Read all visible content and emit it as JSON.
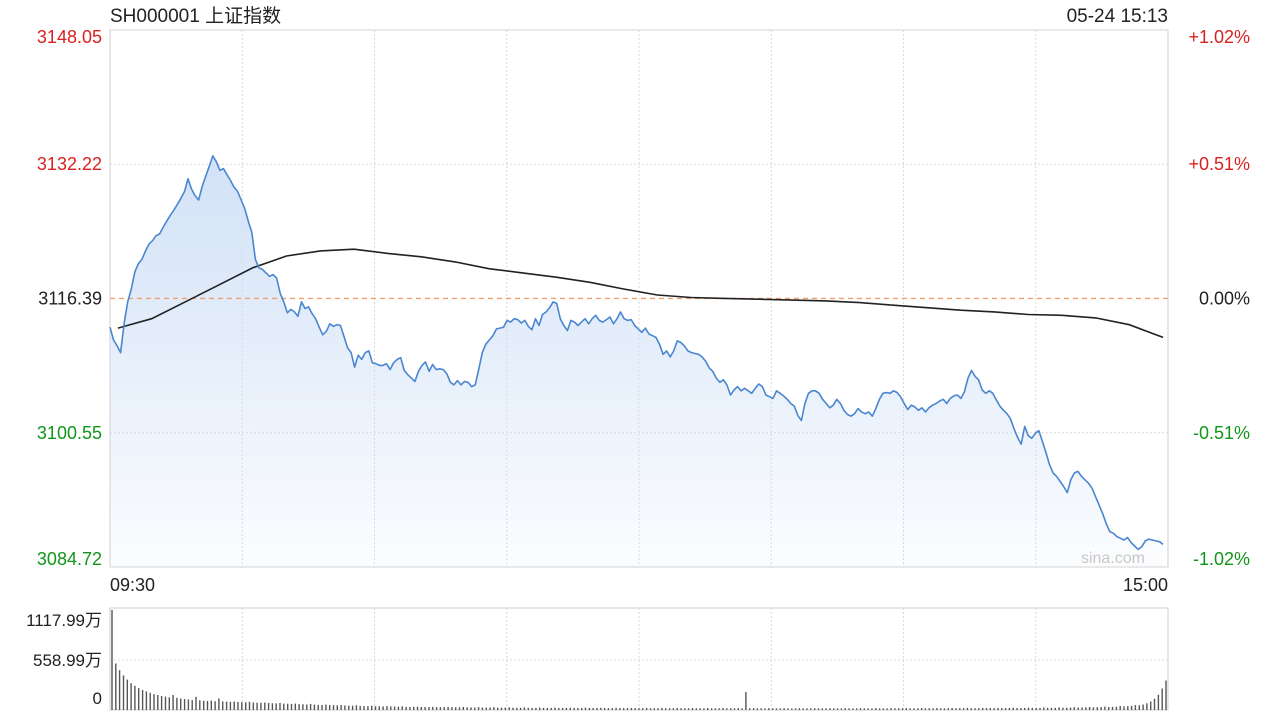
{
  "header": {
    "title": "SH000001 上证指数",
    "timestamp": "05-24 15:13"
  },
  "colors": {
    "up": "#d9211f",
    "down": "#109618",
    "line": "#4a86d0",
    "avg": "#222222",
    "area": "#cfe0f6",
    "baseline": "#f0a070",
    "grid": "#d8d8d8"
  },
  "watermark": "sina.com",
  "chart_data": [
    {
      "type": "line",
      "x_ticks": [
        "09:30",
        "15:00"
      ],
      "y_ticks": [
        {
          "value": 3148.05,
          "label": "3148.05",
          "pct": "+1.02%",
          "trend": "up"
        },
        {
          "value": 3132.22,
          "label": "3132.22",
          "pct": "+0.51%",
          "trend": "up"
        },
        {
          "value": 3116.39,
          "label": "3116.39",
          "pct": "0.00%",
          "trend": "flat"
        },
        {
          "value": 3100.55,
          "label": "3100.55",
          "pct": "-0.51%",
          "trend": "down"
        },
        {
          "value": 3084.72,
          "label": "3084.72",
          "pct": "-1.02%",
          "trend": "down"
        }
      ],
      "ylim": [
        3084.72,
        3148.05
      ],
      "baseline": 3116.39,
      "grid": true,
      "series": [
        {
          "key": "price",
          "values": [
            3113.0,
            3111.5,
            3110.8,
            3110.0,
            3113.5,
            3116.0,
            3117.5,
            3119.5,
            3120.5,
            3121.0,
            3122.0,
            3122.8,
            3123.2,
            3123.8,
            3124.0,
            3124.8,
            3125.5,
            3126.2,
            3126.8,
            3127.5,
            3128.2,
            3129.0,
            3130.5,
            3129.3,
            3128.5,
            3128.0,
            3129.6,
            3130.8,
            3132.0,
            3133.2,
            3132.5,
            3131.5,
            3131.7,
            3131.0,
            3130.3,
            3129.5,
            3129.0,
            3128.0,
            3127.0,
            3125.5,
            3124.2,
            3121.0,
            3120.0,
            3119.8,
            3119.4,
            3119.0,
            3119.2,
            3118.8,
            3117.0,
            3116.0,
            3114.7,
            3115.1,
            3114.8,
            3114.3,
            3116.0,
            3115.2,
            3115.4,
            3114.6,
            3114.0,
            3113.0,
            3112.1,
            3112.5,
            3113.4,
            3113.1,
            3113.3,
            3113.2,
            3111.9,
            3110.6,
            3110.0,
            3108.3,
            3109.7,
            3109.2,
            3110.0,
            3110.2,
            3108.8,
            3108.7,
            3108.5,
            3108.5,
            3108.7,
            3108.0,
            3108.8,
            3109.2,
            3109.4,
            3107.9,
            3107.4,
            3107.0,
            3106.6,
            3107.8,
            3108.5,
            3108.9,
            3107.8,
            3108.6,
            3108.0,
            3108.1,
            3108.0,
            3107.5,
            3106.5,
            3106.2,
            3106.7,
            3106.2,
            3106.6,
            3106.5,
            3106.0,
            3106.2,
            3108.0,
            3110.0,
            3111.0,
            3111.5,
            3112.0,
            3112.8,
            3112.9,
            3113.0,
            3113.8,
            3113.6,
            3114.0,
            3113.9,
            3113.5,
            3113.8,
            3113.1,
            3112.7,
            3114.0,
            3113.2,
            3114.5,
            3114.8,
            3115.3,
            3116.0,
            3115.8,
            3114.0,
            3113.2,
            3112.6,
            3113.8,
            3113.6,
            3113.2,
            3113.6,
            3114.0,
            3113.4,
            3114.0,
            3114.4,
            3113.8,
            3113.6,
            3113.9,
            3114.2,
            3113.4,
            3114.0,
            3114.8,
            3114.0,
            3113.8,
            3113.9,
            3113.2,
            3112.8,
            3112.4,
            3112.9,
            3112.2,
            3112.0,
            3111.8,
            3111.0,
            3109.8,
            3110.2,
            3109.5,
            3110.2,
            3111.4,
            3111.2,
            3110.8,
            3110.2,
            3110.0,
            3109.9,
            3109.8,
            3109.5,
            3109.0,
            3108.2,
            3107.8,
            3107.0,
            3106.5,
            3106.8,
            3106.2,
            3105.0,
            3105.6,
            3106.0,
            3105.5,
            3105.8,
            3105.5,
            3105.2,
            3105.8,
            3106.3,
            3106.0,
            3105.0,
            3104.8,
            3104.6,
            3105.5,
            3105.2,
            3104.9,
            3104.5,
            3104.0,
            3103.7,
            3102.6,
            3102.0,
            3104.0,
            3105.2,
            3105.5,
            3105.5,
            3105.2,
            3104.5,
            3104.0,
            3103.5,
            3103.8,
            3104.5,
            3104.0,
            3103.2,
            3102.7,
            3102.5,
            3102.8,
            3103.4,
            3103.0,
            3102.8,
            3103.0,
            3102.5,
            3103.4,
            3104.5,
            3105.2,
            3105.3,
            3105.2,
            3105.5,
            3105.3,
            3104.8,
            3104.0,
            3103.3,
            3103.8,
            3103.6,
            3103.2,
            3103.5,
            3103.0,
            3103.5,
            3103.8,
            3104.0,
            3104.3,
            3104.5,
            3104.0,
            3104.6,
            3104.9,
            3105.0,
            3104.6,
            3105.4,
            3107.0,
            3107.9,
            3107.2,
            3106.8,
            3105.6,
            3105.2,
            3105.5,
            3105.2,
            3104.4,
            3103.7,
            3103.2,
            3102.8,
            3102.2,
            3101.0,
            3100.0,
            3099.2,
            3101.3,
            3100.2,
            3099.9,
            3100.5,
            3100.8,
            3099.5,
            3098.2,
            3096.8,
            3095.8,
            3095.4,
            3094.8,
            3094.2,
            3093.5,
            3095.0,
            3095.8,
            3096.0,
            3095.4,
            3095.0,
            3094.6,
            3094.0,
            3093.0,
            3092.0,
            3091.0,
            3089.8,
            3088.9,
            3088.7,
            3088.3,
            3088.1,
            3087.9,
            3088.2,
            3087.6,
            3087.2,
            3086.8,
            3087.1,
            3087.8,
            3088.0,
            3087.9,
            3087.8,
            3087.7,
            3087.4
          ]
        },
        {
          "key": "average",
          "values": [
            3112.9,
            3114.0,
            3116.0,
            3118.0,
            3120.0,
            3121.4,
            3122.0,
            3122.2,
            3121.7,
            3121.3,
            3120.7,
            3119.9,
            3119.4,
            3118.9,
            3118.3,
            3117.5,
            3116.8,
            3116.5,
            3116.4,
            3116.3,
            3116.2,
            3116.1,
            3115.9,
            3115.6,
            3115.3,
            3115.0,
            3114.8,
            3114.5,
            3114.4,
            3114.1,
            3113.3,
            3111.8
          ]
        }
      ]
    },
    {
      "type": "bar",
      "y_ticks": [
        {
          "value": 1117.99,
          "label": "1117.99万"
        },
        {
          "value": 558.99,
          "label": "558.99万"
        },
        {
          "value": 0,
          "label": "0"
        }
      ],
      "ylim": [
        0,
        1117.99
      ],
      "values": [
        1117.99,
        520,
        445,
        388,
        340,
        300,
        270,
        245,
        225,
        208,
        192,
        178,
        168,
        158,
        150,
        142,
        168,
        135,
        128,
        122,
        118,
        112,
        148,
        108,
        104,
        102,
        106,
        98,
        130,
        96,
        94,
        92,
        95,
        90,
        88,
        86,
        92,
        84,
        82,
        80,
        84,
        78,
        76,
        74,
        78,
        72,
        70,
        68,
        72,
        66,
        64,
        62,
        68,
        60,
        58,
        56,
        60,
        55,
        54,
        52,
        56,
        50,
        49,
        48,
        52,
        46,
        45,
        44,
        48,
        42,
        41,
        40,
        44,
        39,
        38,
        37,
        41,
        36,
        35,
        35,
        38,
        34,
        33,
        33,
        36,
        32,
        32,
        31,
        35,
        31,
        30,
        30,
        34,
        29,
        29,
        28,
        32,
        28,
        28,
        27,
        31,
        27,
        26,
        26,
        30,
        26,
        25,
        25,
        29,
        25,
        24,
        24,
        28,
        24,
        24,
        23,
        27,
        23,
        23,
        23,
        26,
        23,
        22,
        22,
        26,
        22,
        22,
        22,
        25,
        22,
        21,
        21,
        25,
        21,
        21,
        21,
        24,
        21,
        21,
        20,
        24,
        20,
        20,
        20,
        23,
        20,
        20,
        20,
        23,
        20,
        20,
        19,
        22,
        19,
        19,
        19,
        22,
        19,
        19,
        19,
        22,
        19,
        19,
        19,
        21,
        19,
        200,
        19,
        21,
        19,
        19,
        18,
        21,
        18,
        18,
        18,
        21,
        18,
        18,
        18,
        20,
        18,
        18,
        18,
        20,
        18,
        18,
        18,
        20,
        18,
        18,
        18,
        20,
        18,
        18,
        18,
        20,
        18,
        18,
        18,
        21,
        18,
        18,
        18,
        21,
        19,
        19,
        19,
        21,
        19,
        19,
        19,
        22,
        19,
        19,
        19,
        22,
        19,
        19,
        20,
        23,
        20,
        20,
        20,
        23,
        20,
        20,
        20,
        24,
        21,
        21,
        21,
        25,
        21,
        21,
        22,
        26,
        22,
        22,
        23,
        27,
        23,
        23,
        24,
        28,
        24,
        25,
        25,
        30,
        26,
        26,
        27,
        31,
        27,
        28,
        29,
        34,
        30,
        31,
        32,
        38,
        34,
        35,
        37,
        45,
        40,
        42,
        46,
        55,
        52,
        60,
        75,
        95,
        125,
        170,
        240,
        330
      ]
    }
  ]
}
